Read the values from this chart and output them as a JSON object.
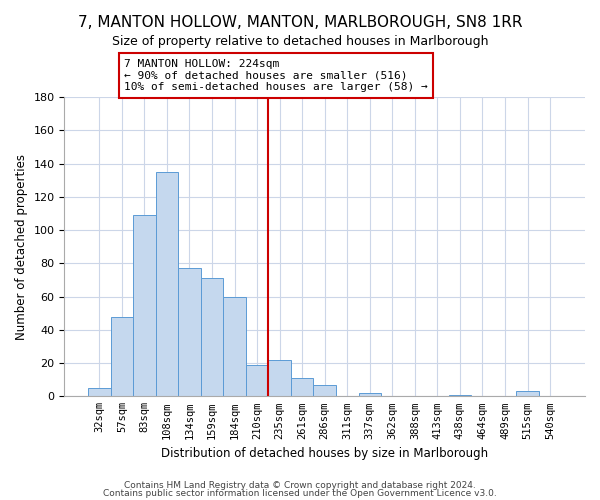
{
  "title": "7, MANTON HOLLOW, MANTON, MARLBOROUGH, SN8 1RR",
  "subtitle": "Size of property relative to detached houses in Marlborough",
  "xlabel": "Distribution of detached houses by size in Marlborough",
  "ylabel": "Number of detached properties",
  "bar_labels": [
    "32sqm",
    "57sqm",
    "83sqm",
    "108sqm",
    "134sqm",
    "159sqm",
    "184sqm",
    "210sqm",
    "235sqm",
    "261sqm",
    "286sqm",
    "311sqm",
    "337sqm",
    "362sqm",
    "388sqm",
    "413sqm",
    "438sqm",
    "464sqm",
    "489sqm",
    "515sqm",
    "540sqm"
  ],
  "bar_values": [
    5,
    48,
    109,
    135,
    77,
    71,
    60,
    19,
    22,
    11,
    7,
    0,
    2,
    0,
    0,
    0,
    1,
    0,
    0,
    3,
    0
  ],
  "bar_color": "#c5d8ee",
  "bar_edge_color": "#5b9bd5",
  "vline_x_index": 7.5,
  "vline_color": "#cc0000",
  "annotation_text": "7 MANTON HOLLOW: 224sqm\n← 90% of detached houses are smaller (516)\n10% of semi-detached houses are larger (58) →",
  "annotation_box_color": "#ffffff",
  "annotation_box_edge": "#cc0000",
  "ylim": [
    0,
    180
  ],
  "yticks": [
    0,
    20,
    40,
    60,
    80,
    100,
    120,
    140,
    160,
    180
  ],
  "footer1": "Contains HM Land Registry data © Crown copyright and database right 2024.",
  "footer2": "Contains public sector information licensed under the Open Government Licence v3.0.",
  "background_color": "#ffffff",
  "grid_color": "#ccd6e8"
}
